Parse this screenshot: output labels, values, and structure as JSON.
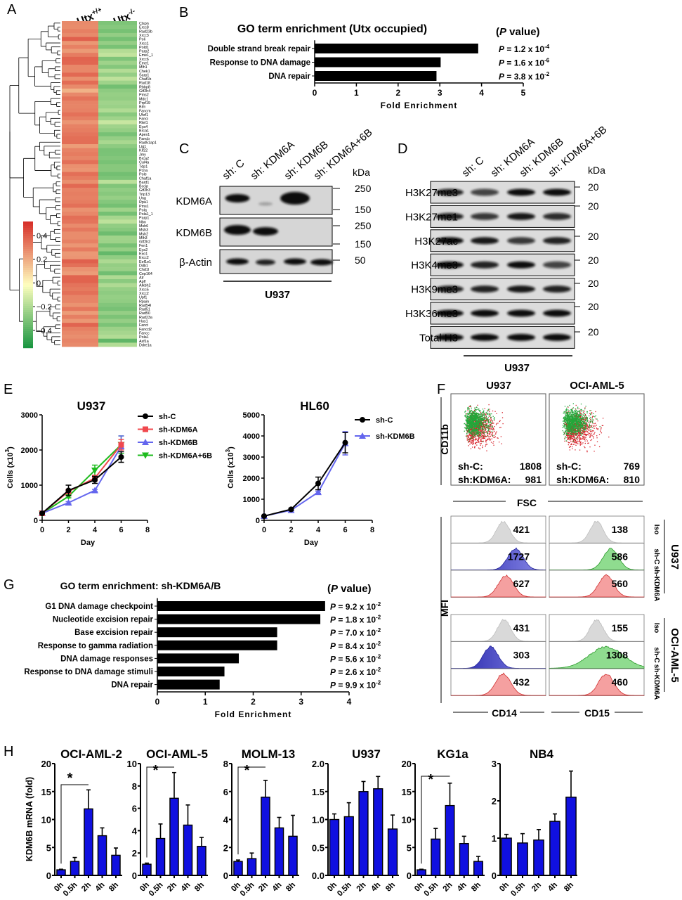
{
  "panel_labels": {
    "A": "A",
    "B": "B",
    "C": "C",
    "D": "D",
    "E": "E",
    "F": "F",
    "G": "G",
    "H": "H"
  },
  "panelA": {
    "columns": [
      {
        "base": "Utx",
        "sup": "+/+"
      },
      {
        "base": "Utx",
        "sup": "-/-"
      }
    ],
    "genes": [
      "Clspn",
      "Ercc8",
      "Rad23b",
      "Xrcc3",
      "Poli",
      "Xrcc1",
      "Pold1",
      "Parp2",
      "Eme1_1",
      "Xrcc6",
      "Eme1",
      "Mlh1",
      "Chek1",
      "Sarp1",
      "Chaf1b",
      "Rad18",
      "Rbbp8",
      "Gtf2h4",
      "Pms2",
      "Mdc1",
      "Prpf19",
      "Blm",
      "Fancm",
      "Uhrf1",
      "Fanci",
      "Rtel1",
      "Eya4",
      "Brca1",
      "Apex1",
      "Fancb",
      "Rad51ap1",
      "Lig1",
      "Kif22",
      "Jmy",
      "Brca2",
      "Cul4a",
      "Tdp1",
      "Pcna",
      "Pole",
      "Chaf1a",
      "Bard1",
      "Bccip",
      "Gtf2h3",
      "Trip13",
      "Ung",
      "Rpa1",
      "Pms1",
      "Polq",
      "Pola1_1",
      "Parp1",
      "Nbn",
      "Msh6",
      "Msh3",
      "Msh2",
      "Mlh3",
      "Gtf2h2",
      "Fen1",
      "Eya2",
      "Exo1",
      "Ercc2",
      "Eef1e1",
      "Ddb1",
      "Chd1l",
      "Cep164",
      "Atr",
      "Aplf",
      "Alkbh2",
      "Xrcc5",
      "Xrcc2",
      "Upf1",
      "Rpain",
      "Rad54l",
      "Rad51",
      "Rad50",
      "Rad23a",
      "Hus1",
      "Fanci",
      "Fancd2",
      "Fancc",
      "Pola1",
      "Asf1a",
      "Ddre1a"
    ],
    "colorbar_ticks": [
      "0.4",
      "0.2",
      "0",
      "−0.2",
      "−0.4"
    ],
    "colors": {
      "high": "#d7302a",
      "mid": "#ffffbf",
      "low": "#1a9641"
    }
  },
  "panelC": {
    "lanes": [
      "sh: C",
      "sh: KDM6A",
      "sh: KDM6B",
      "sh: KDM6A+6B"
    ],
    "rows": [
      "KDM6A",
      "KDM6B",
      "β-Actin"
    ],
    "kda_header": "kDa",
    "kda": [
      "250",
      "150",
      "250",
      "150",
      "50"
    ],
    "cell_line": "U937"
  },
  "panelD": {
    "lanes": [
      "sh: C",
      "sh: KDM6A",
      "sh: KDM6B",
      "sh: KDM6A+6B"
    ],
    "rows": [
      "H3K27me3",
      "H3K27me1",
      "H3K27ac",
      "H3K4me3",
      "H3K9me3",
      "H3K36me3",
      "Total H3"
    ],
    "kda_header": "kDa",
    "kda": [
      "20",
      "20",
      "20",
      "20",
      "20",
      "20",
      "20"
    ],
    "cell_line": "U937"
  },
  "panelF": {
    "dot_titles": [
      "U937",
      "OCI-AML-5"
    ],
    "y_axis": "CD11b",
    "x_axis": "FSC",
    "dot_legends": [
      [
        {
          "label": "sh-C:",
          "value": "1808",
          "color": "#22a83a"
        },
        {
          "label": "sh:KDM6A:",
          "value": "981",
          "color": "#d8222a"
        }
      ],
      [
        {
          "label": "sh-C:",
          "value": "769",
          "color": "#22a83a"
        },
        {
          "label": "sh:KDM6A:",
          "value": "810",
          "color": "#d8222a"
        }
      ]
    ],
    "mfi_label": "MFI",
    "row_labels": [
      "Iso",
      "sh-C",
      "sh-KDM6A"
    ],
    "groups": [
      "U937",
      "OCI-AML-5"
    ],
    "markers": [
      "CD14",
      "CD15"
    ],
    "histograms": {
      "U937": {
        "CD14": [
          "421",
          "1727",
          "627"
        ],
        "CD15": [
          "138",
          "586",
          "560"
        ]
      },
      "OCI-AML-5": {
        "CD14": [
          "431",
          "303",
          "432"
        ],
        "CD15": [
          "155",
          "1308",
          "460"
        ]
      }
    },
    "colors": {
      "iso": "#9a9a9a",
      "blue": "#1e6fb8",
      "green": "#27a33a",
      "red": "#c0222a"
    }
  },
  "chart_data": [
    {
      "id": "B",
      "type": "bar",
      "orientation": "horizontal",
      "title": "GO term enrichment (Utx occupied)",
      "categories": [
        "Double strand break repair",
        "Response to DNA damage",
        "DNA repair"
      ],
      "values": [
        3.92,
        3.02,
        2.92
      ],
      "xlabel": "Fold Enrichment",
      "xlim": [
        0,
        5
      ],
      "xticks": [
        "0",
        "1",
        "2",
        "3",
        "4",
        "5"
      ],
      "p_header": {
        "open": "(",
        "p": "P",
        "rest": " value)"
      },
      "p_values": [
        {
          "p": "P",
          "text": " = 1.2 x 10",
          "exp": "-4"
        },
        {
          "p": "P",
          "text": " = 1.6 x 10",
          "exp": "-6"
        },
        {
          "p": "P",
          "text": " = 3.8 x 10",
          "exp": "-2"
        }
      ],
      "color": "#000000"
    },
    {
      "id": "E-U937",
      "type": "line",
      "title": "U937",
      "xlabel": "Day",
      "ylabel": {
        "base": "Cells (x10",
        "sup": "3",
        "end": ")"
      },
      "x": [
        0,
        2,
        4,
        6
      ],
      "xlim": [
        0,
        8
      ],
      "ylim": [
        0,
        3000
      ],
      "xticks": [
        "0",
        "2",
        "4",
        "6",
        "8"
      ],
      "yticks": [
        "0",
        "1000",
        "2000",
        "3000"
      ],
      "series": [
        {
          "name": "sh-C",
          "color": "#000000",
          "marker": "circle",
          "values": [
            200,
            850,
            1150,
            1800
          ],
          "errors": [
            20,
            150,
            100,
            150
          ]
        },
        {
          "name": "sh-KDM6A",
          "color": "#f0484e",
          "marker": "square",
          "values": [
            200,
            820,
            1200,
            2150
          ],
          "errors": [
            20,
            60,
            80,
            150
          ]
        },
        {
          "name": "sh-KDM6B",
          "color": "#6466ee",
          "marker": "triangle",
          "values": [
            200,
            500,
            850,
            2100
          ],
          "errors": [
            20,
            30,
            30,
            300
          ]
        },
        {
          "name": "sh-KDM6A+6B",
          "color": "#1dbb1d",
          "marker": "triangle-down",
          "values": [
            200,
            680,
            1420,
            2150
          ],
          "errors": [
            20,
            40,
            150,
            250
          ]
        }
      ],
      "legend": "right"
    },
    {
      "id": "E-HL60",
      "type": "line",
      "title": "HL60",
      "xlabel": "Day",
      "ylabel": {
        "base": "Cells (x10",
        "sup": "3",
        "end": ")"
      },
      "x": [
        0,
        2,
        4,
        6
      ],
      "xlim": [
        0,
        8
      ],
      "ylim": [
        0,
        5000
      ],
      "xticks": [
        "0",
        "2",
        "4",
        "6",
        "8"
      ],
      "yticks": [
        "0",
        "1000",
        "2000",
        "3000",
        "4000",
        "5000"
      ],
      "series": [
        {
          "name": "sh-C",
          "color": "#000000",
          "marker": "circle",
          "values": [
            200,
            520,
            1750,
            3680
          ],
          "errors": [
            20,
            50,
            300,
            480
          ]
        },
        {
          "name": "sh-KDM6B",
          "color": "#6466ee",
          "marker": "triangle",
          "values": [
            200,
            480,
            1330,
            3650
          ],
          "errors": [
            20,
            30,
            50,
            550
          ]
        }
      ],
      "legend": "right"
    },
    {
      "id": "G",
      "type": "bar",
      "orientation": "horizontal",
      "title": "GO term enrichment: sh-KDM6A/B",
      "categories": [
        "G1 DNA damage checkpoint",
        "Nucleotide excision repair",
        "Base excision repair",
        "Response to gamma radiation",
        "DNA damage responses",
        "Response to DNA damage stimuli",
        "DNA repair"
      ],
      "values": [
        3.5,
        3.4,
        2.5,
        2.5,
        1.7,
        1.4,
        1.3
      ],
      "xlabel": "Fold Enrichment",
      "xlim": [
        0,
        4
      ],
      "xticks": [
        "0",
        "1",
        "2",
        "3",
        "4"
      ],
      "p_header": {
        "open": "(",
        "p": "P",
        "rest": " value)"
      },
      "p_values": [
        {
          "p": "P",
          "text": " = 9.2 x 10",
          "exp": "-2"
        },
        {
          "p": "P",
          "text": " = 1.8 x 10",
          "exp": "-2"
        },
        {
          "p": "P",
          "text": " = 7.0 x 10",
          "exp": "-2"
        },
        {
          "p": "P",
          "text": " = 8.4 x 10",
          "exp": "-2"
        },
        {
          "p": "P",
          "text": " = 5.6 x 10",
          "exp": "-2"
        },
        {
          "p": "P",
          "text": " = 2.6 x 10",
          "exp": "-2"
        },
        {
          "p": "P",
          "text": " = 9.9 x 10",
          "exp": "-2"
        }
      ],
      "color": "#000000"
    },
    {
      "id": "H-OCI-AML-2",
      "type": "bar",
      "title": "OCI-AML-2",
      "ylabel": "KDM6B mRNA (fold)",
      "categories": [
        "0h",
        "0.5h",
        "2h",
        "4h",
        "8h"
      ],
      "values": [
        1,
        2.5,
        11.9,
        7.1,
        3.6
      ],
      "errors": [
        0.1,
        0.7,
        3.4,
        1.4,
        1.3
      ],
      "ylim": [
        0,
        20
      ],
      "yticks": [
        "0",
        "5",
        "10",
        "15",
        "20"
      ],
      "significance": {
        "from": 0,
        "to": 2,
        "label": "*"
      },
      "color": "#1010e0"
    },
    {
      "id": "H-OCI-AML-5",
      "type": "bar",
      "title": "OCI-AML-5",
      "categories": [
        "0h",
        "0.5h",
        "2h",
        "4h",
        "8h"
      ],
      "values": [
        1,
        3.3,
        6.9,
        4.5,
        2.6
      ],
      "errors": [
        0.1,
        1.3,
        2.3,
        1.8,
        0.8
      ],
      "ylim": [
        0,
        10
      ],
      "yticks": [
        "0",
        "2",
        "4",
        "6",
        "8",
        "10"
      ],
      "significance": {
        "from": 0,
        "to": 2,
        "label": "*"
      },
      "color": "#1010e0"
    },
    {
      "id": "H-MOLM-13",
      "type": "bar",
      "title": "MOLM-13",
      "categories": [
        "0h",
        "0.5h",
        "2h",
        "4h",
        "8h"
      ],
      "values": [
        1,
        1.2,
        5.6,
        3.4,
        2.8
      ],
      "errors": [
        0.1,
        0.4,
        1.2,
        0.75,
        1.5
      ],
      "ylim": [
        0,
        8
      ],
      "yticks": [
        "0",
        "2",
        "4",
        "6",
        "8"
      ],
      "significance": {
        "from": 0,
        "to": 2,
        "label": "*"
      },
      "color": "#1010e0"
    },
    {
      "id": "H-U937",
      "type": "bar",
      "title": "U937",
      "categories": [
        "0h",
        "0.5h",
        "2h",
        "4h",
        "8h"
      ],
      "values": [
        1.0,
        1.05,
        1.5,
        1.55,
        0.83
      ],
      "errors": [
        0.1,
        0.25,
        0.18,
        0.22,
        0.25
      ],
      "ylim": [
        0,
        2
      ],
      "yticks": [
        "0.0",
        "0.5",
        "1.0",
        "1.5",
        "2.0"
      ],
      "color": "#1010e0"
    },
    {
      "id": "H-KG1a",
      "type": "bar",
      "title": "KG1a",
      "categories": [
        "0h",
        "0.5h",
        "2h",
        "4h",
        "8h"
      ],
      "values": [
        1,
        6.5,
        12.5,
        5.7,
        2.5
      ],
      "errors": [
        0.1,
        1.9,
        4.0,
        1.3,
        0.9
      ],
      "ylim": [
        0,
        20
      ],
      "yticks": [
        "0",
        "5",
        "10",
        "15",
        "20"
      ],
      "significance": {
        "from": 0,
        "to": 2,
        "label": "*"
      },
      "color": "#1010e0"
    },
    {
      "id": "H-NB4",
      "type": "bar",
      "title": "NB4",
      "categories": [
        "0h",
        "0.5h",
        "2h",
        "4h",
        "8h"
      ],
      "values": [
        1,
        0.87,
        0.95,
        1.45,
        2.1
      ],
      "errors": [
        0.1,
        0.25,
        0.28,
        0.2,
        0.7
      ],
      "ylim": [
        0,
        3
      ],
      "yticks": [
        "0",
        "1",
        "2",
        "3"
      ],
      "color": "#1010e0"
    }
  ]
}
